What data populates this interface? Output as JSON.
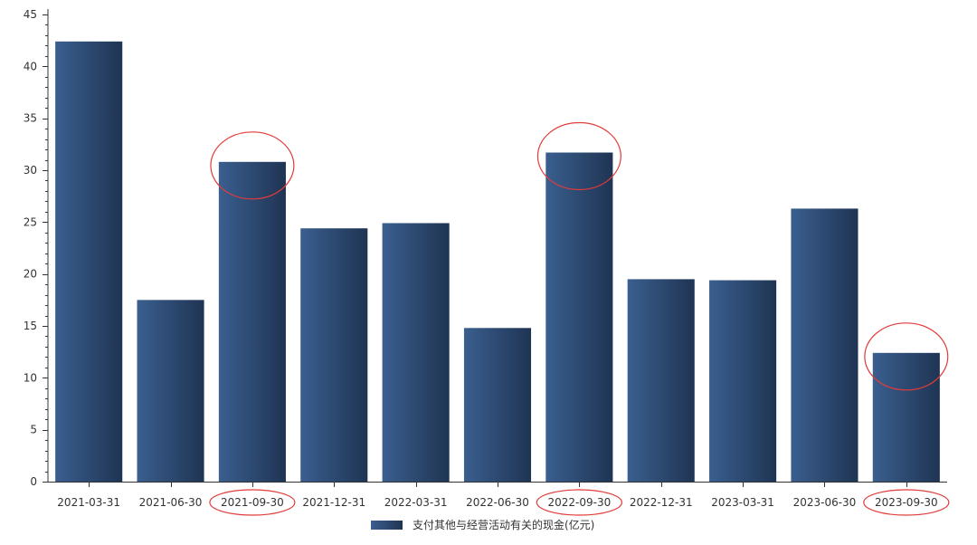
{
  "chart_data": {
    "type": "bar",
    "categories": [
      "2021-03-31",
      "2021-06-30",
      "2021-09-30",
      "2021-12-31",
      "2022-03-31",
      "2022-06-30",
      "2022-09-30",
      "2022-12-31",
      "2023-03-31",
      "2023-06-30",
      "2023-09-30"
    ],
    "series": [
      {
        "name": "支付其他与经营活动有关的现金(亿元)",
        "values": [
          42.4,
          17.5,
          30.8,
          24.4,
          24.9,
          14.8,
          31.7,
          19.5,
          19.4,
          26.3,
          12.4
        ]
      }
    ],
    "title": "",
    "xlabel": "",
    "ylabel": "",
    "ylim": [
      0,
      45
    ],
    "yticks": [
      0,
      5,
      10,
      15,
      20,
      25,
      30,
      35,
      40,
      45
    ],
    "grid": false,
    "legend_position": "bottom-center",
    "bar_color_light": "#3a5f8f",
    "bar_color_dark": "#1f3453",
    "highlight_color": "#e23b3b",
    "highlighted_categories": [
      "2021-09-30",
      "2022-09-30",
      "2023-09-30"
    ]
  }
}
